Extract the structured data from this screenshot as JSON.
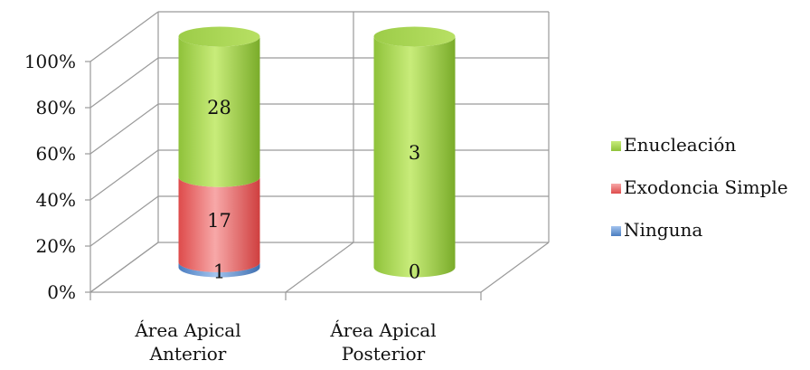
{
  "chart_data": {
    "type": "bar",
    "stacked": "percent",
    "style": "3d-cylinder",
    "categories": [
      "Área Apical Anterior",
      "Área Apical Posterior"
    ],
    "category_label_lines": [
      [
        "Área Apical",
        "Anterior"
      ],
      [
        "Área Apical",
        "Posterior"
      ]
    ],
    "series": [
      {
        "name": "Ninguna",
        "values": [
          1,
          0
        ],
        "color": "#4f81bd"
      },
      {
        "name": "Exodoncia Simple",
        "values": [
          17,
          0
        ],
        "color": "#e05c5c"
      },
      {
        "name": "Enucleación",
        "values": [
          28,
          3
        ],
        "color": "#9acd32"
      }
    ],
    "data_labels": [
      [
        "1",
        "17",
        "28"
      ],
      [
        "0",
        "",
        "3"
      ]
    ],
    "y_ticks": [
      "0%",
      "20%",
      "40%",
      "60%",
      "80%",
      "100%"
    ],
    "ylim": [
      0,
      100
    ],
    "grid": true,
    "legend": {
      "position": "right",
      "order": [
        "Enucleación",
        "Exodoncia Simple",
        "Ninguna"
      ]
    },
    "title": "",
    "xlabel": "",
    "ylabel": ""
  }
}
